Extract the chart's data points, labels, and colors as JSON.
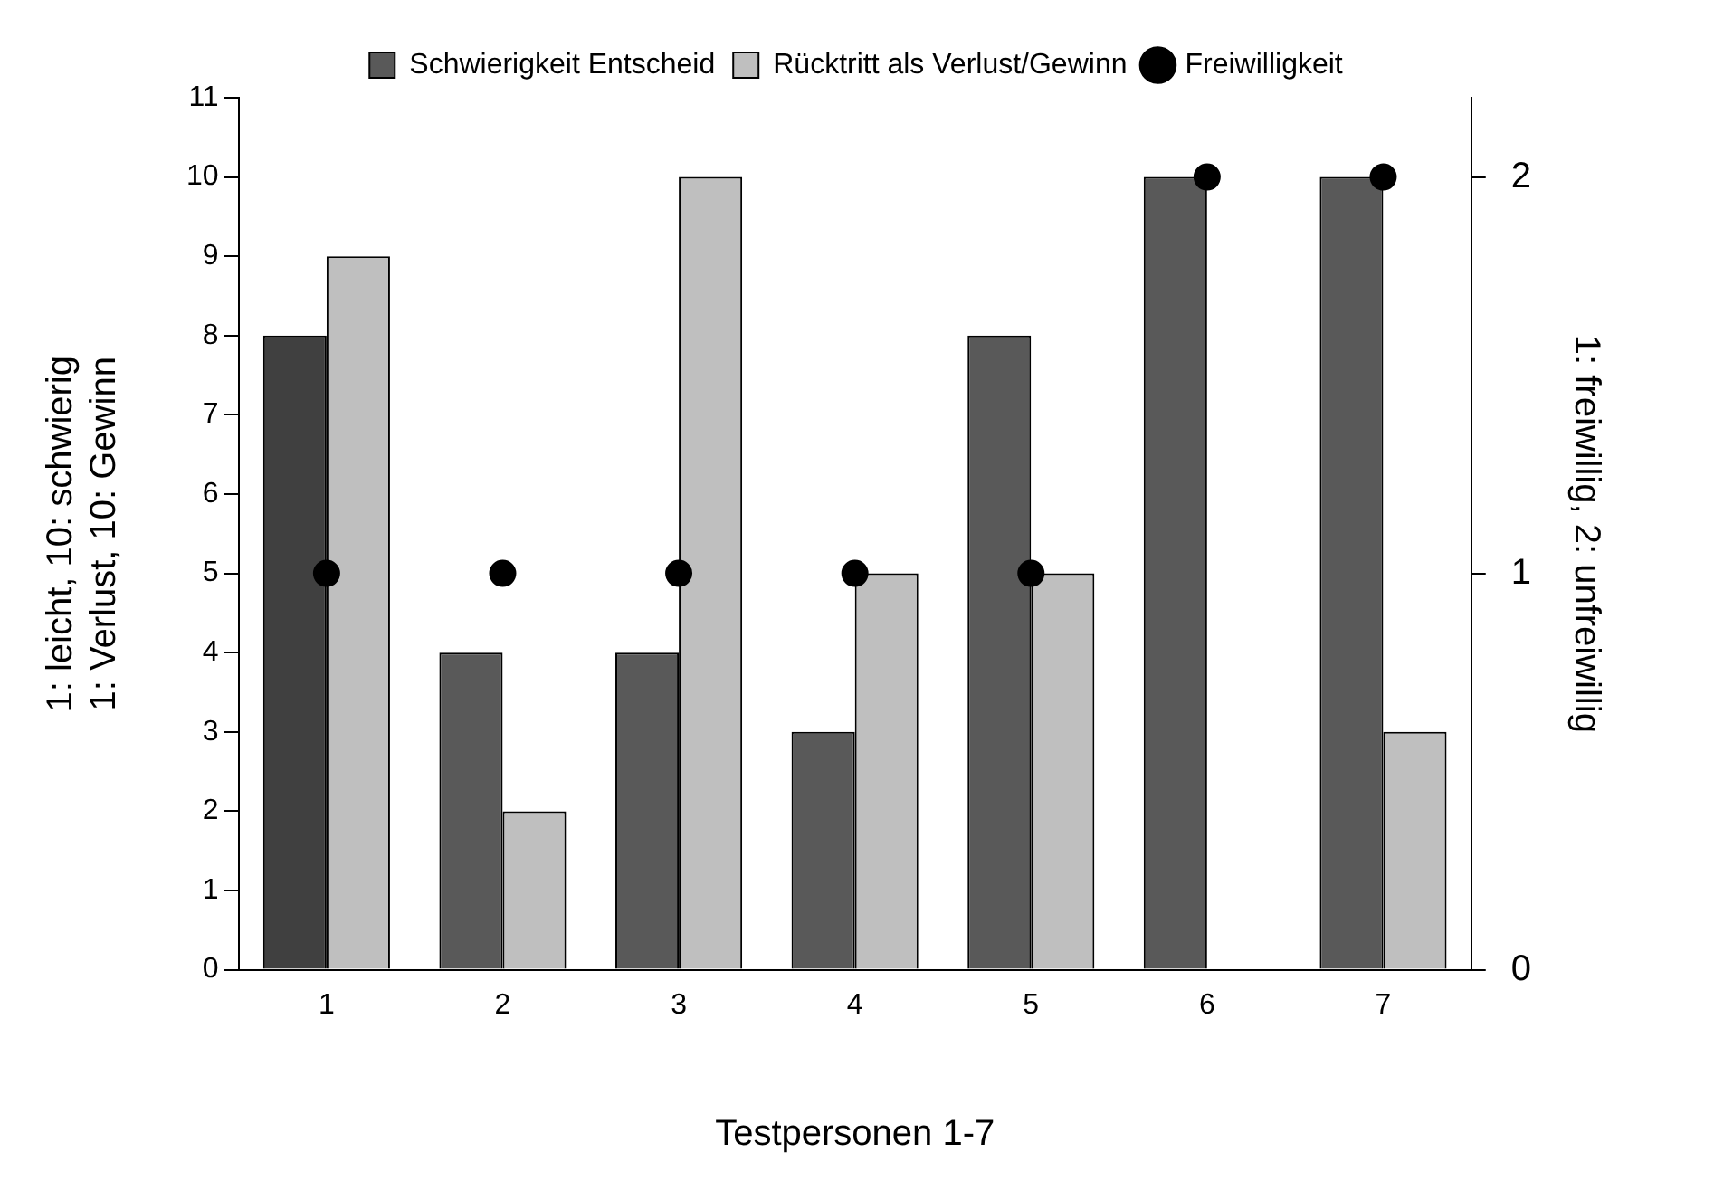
{
  "chart_data": {
    "type": "bar",
    "xlabel": "Testpersonen 1-7",
    "ylabel": "1: leicht, 10: schwierig\n1: Verlust, 10: Gewinn",
    "y2label": "1: freiwillig, 2: unfreiwillig",
    "categories": [
      "1",
      "2",
      "3",
      "4",
      "5",
      "6",
      "7"
    ],
    "series": [
      {
        "name": "Schwierigkeit Entscheid",
        "color": "#595959",
        "colors": [
          "#404040",
          "#595959",
          "#595959",
          "#595959",
          "#595959",
          "#595959",
          "#595959"
        ],
        "values": [
          8,
          4,
          4,
          3,
          8,
          10,
          10
        ]
      },
      {
        "name": "Rücktritt als Verlust/Gewinn",
        "color": "#bfbfbf",
        "values": [
          9,
          2,
          10,
          5,
          5,
          null,
          3
        ]
      },
      {
        "name": "Freiwilligkeit",
        "type": "scatter",
        "axis": "y2",
        "color": "#000000",
        "marker": "circle",
        "values": [
          1,
          1,
          1,
          1,
          1,
          2,
          2
        ]
      }
    ],
    "ylim": [
      0,
      11
    ],
    "yticks": [
      0,
      1,
      2,
      3,
      4,
      5,
      6,
      7,
      8,
      9,
      10,
      11
    ],
    "y2lim": [
      0,
      2.2
    ],
    "y2ticks": [
      0,
      1,
      2
    ],
    "grid": false,
    "legend": "top"
  }
}
